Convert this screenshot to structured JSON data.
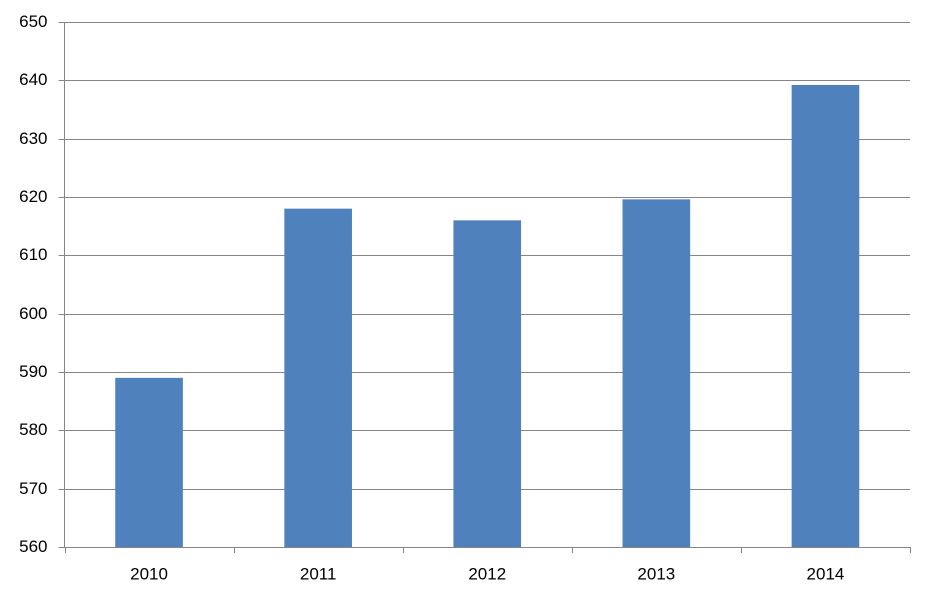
{
  "chart_data": {
    "type": "bar",
    "categories": [
      "2010",
      "2011",
      "2012",
      "2013",
      "2014"
    ],
    "values": [
      589,
      618,
      616,
      619.6,
      639.2
    ],
    "color": "#4f81bd",
    "ylim": [
      560,
      650
    ],
    "yticks": [
      560,
      570,
      580,
      590,
      600,
      610,
      620,
      630,
      640,
      650
    ],
    "grid": true
  }
}
